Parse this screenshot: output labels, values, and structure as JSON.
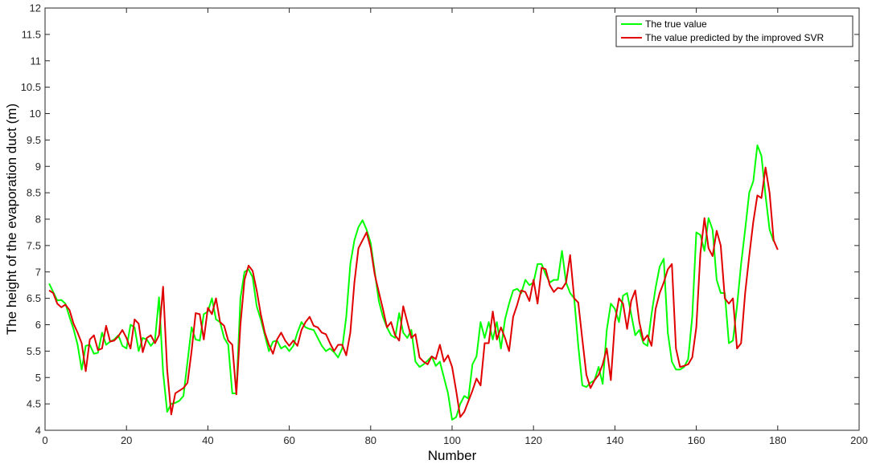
{
  "chart_data": {
    "type": "line",
    "title": "",
    "xlabel": "Number",
    "ylabel": "The height of the evaporation duct (m)",
    "xlim": [
      0,
      200
    ],
    "ylim": [
      4,
      12
    ],
    "x_ticks": [
      0,
      20,
      40,
      60,
      80,
      100,
      120,
      140,
      160,
      180,
      200
    ],
    "y_ticks": [
      4,
      4.5,
      5,
      5.5,
      6,
      6.5,
      7,
      7.5,
      8,
      8.5,
      9,
      9.5,
      10,
      10.5,
      11,
      11.5,
      12
    ],
    "y_tick_labels": [
      "4",
      "4.5",
      "5",
      "5.5",
      "6",
      "6.5",
      "7",
      "7.5",
      "8",
      "8.5",
      "9",
      "9.5",
      "10",
      "10.5",
      "11",
      "11.5",
      "12"
    ],
    "grid": false,
    "legend_position": "top-right",
    "colors": {
      "true": "#00ff00",
      "pred": "#e00000",
      "axis": "#262626"
    },
    "x_start": 1,
    "series": [
      {
        "name": "The true value",
        "color": "#00ff00",
        "values": [
          6.78,
          6.62,
          6.46,
          6.47,
          6.4,
          6.15,
          5.92,
          5.62,
          5.15,
          5.6,
          5.62,
          5.45,
          5.47,
          5.85,
          5.62,
          5.68,
          5.72,
          5.8,
          5.6,
          5.55,
          6.0,
          5.95,
          5.5,
          5.75,
          5.72,
          5.6,
          5.7,
          6.52,
          5.1,
          4.35,
          4.5,
          4.52,
          4.56,
          4.65,
          5.3,
          5.95,
          5.72,
          5.7,
          6.2,
          6.25,
          6.5,
          6.1,
          6.05,
          5.75,
          5.62,
          4.7,
          4.7,
          6.5,
          7.0,
          7.05,
          6.9,
          6.35,
          6.1,
          5.8,
          5.5,
          5.68,
          5.7,
          5.55,
          5.6,
          5.5,
          5.6,
          5.85,
          6.05,
          5.95,
          5.92,
          5.9,
          5.75,
          5.6,
          5.5,
          5.55,
          5.48,
          5.38,
          5.55,
          6.15,
          7.15,
          7.6,
          7.85,
          7.98,
          7.8,
          7.55,
          7.0,
          6.45,
          6.15,
          5.95,
          5.8,
          5.75,
          6.22,
          5.85,
          5.75,
          5.9,
          5.3,
          5.2,
          5.25,
          5.32,
          5.4,
          5.22,
          5.3,
          5.0,
          4.7,
          4.2,
          4.25,
          4.5,
          4.65,
          4.6,
          5.25,
          5.4,
          6.05,
          5.75,
          6.05,
          5.72,
          6.05,
          5.55,
          6.1,
          6.4,
          6.65,
          6.68,
          6.6,
          6.85,
          6.75,
          6.8,
          7.15,
          7.15,
          6.95,
          6.8,
          6.85,
          6.85,
          7.4,
          6.8,
          6.6,
          6.5,
          5.6,
          4.85,
          4.82,
          4.9,
          4.95,
          5.2,
          4.88,
          5.9,
          6.4,
          6.3,
          6.05,
          6.55,
          6.6,
          6.2,
          5.8,
          5.9,
          5.65,
          5.6,
          6.2,
          6.7,
          7.1,
          7.25,
          5.85,
          5.3,
          5.15,
          5.15,
          5.2,
          5.35,
          6.15,
          7.75,
          7.7,
          7.4,
          8.02,
          7.8,
          6.85,
          6.6,
          6.6,
          5.65,
          5.7,
          6.35,
          7.15,
          7.8,
          8.5,
          8.72,
          9.4,
          9.2,
          8.45,
          7.8,
          7.58
        ],
        "values_note": ""
      },
      {
        "name": "The value predicted by the improved SVR",
        "color": "#e00000",
        "values": [
          6.65,
          6.6,
          6.4,
          6.33,
          6.38,
          6.28,
          6.02,
          5.85,
          5.65,
          5.12,
          5.72,
          5.8,
          5.52,
          5.55,
          5.98,
          5.68,
          5.7,
          5.78,
          5.9,
          5.75,
          5.55,
          6.1,
          6.02,
          5.48,
          5.75,
          5.8,
          5.65,
          5.8,
          6.72,
          5.15,
          4.3,
          4.7,
          4.75,
          4.8,
          4.9,
          5.5,
          6.22,
          6.2,
          5.72,
          6.32,
          6.2,
          6.5,
          6.05,
          5.98,
          5.7,
          5.62,
          4.68,
          6.0,
          6.85,
          7.12,
          7.02,
          6.65,
          6.2,
          5.85,
          5.62,
          5.45,
          5.72,
          5.85,
          5.7,
          5.6,
          5.7,
          5.6,
          5.9,
          6.05,
          6.15,
          5.98,
          5.95,
          5.85,
          5.82,
          5.65,
          5.5,
          5.62,
          5.62,
          5.42,
          5.85,
          6.8,
          7.45,
          7.6,
          7.75,
          7.45,
          6.95,
          6.62,
          6.3,
          5.95,
          6.05,
          5.8,
          5.7,
          6.35,
          6.05,
          5.75,
          5.82,
          5.38,
          5.3,
          5.25,
          5.4,
          5.35,
          5.62,
          5.3,
          5.42,
          5.2,
          4.75,
          4.25,
          4.35,
          4.55,
          4.75,
          4.98,
          4.85,
          5.65,
          5.65,
          6.25,
          5.72,
          5.95,
          5.75,
          5.5,
          6.15,
          6.38,
          6.65,
          6.62,
          6.45,
          6.85,
          6.4,
          7.08,
          7.05,
          6.75,
          6.62,
          6.7,
          6.68,
          6.8,
          7.32,
          6.5,
          6.42,
          5.72,
          5.05,
          4.8,
          4.95,
          5.05,
          5.25,
          5.55,
          4.95,
          6.05,
          6.5,
          6.4,
          5.92,
          6.45,
          6.65,
          6.05,
          5.7,
          5.8,
          5.6,
          6.3,
          6.6,
          6.8,
          7.05,
          7.15,
          5.55,
          5.2,
          5.22,
          5.25,
          5.38,
          5.95,
          7.35,
          8.02,
          7.45,
          7.3,
          7.78,
          7.5,
          6.5,
          6.4,
          6.5,
          5.55,
          5.65,
          6.6,
          7.3,
          7.95,
          8.45,
          8.4,
          8.98,
          8.5,
          7.6,
          7.42
        ]
      }
    ]
  }
}
